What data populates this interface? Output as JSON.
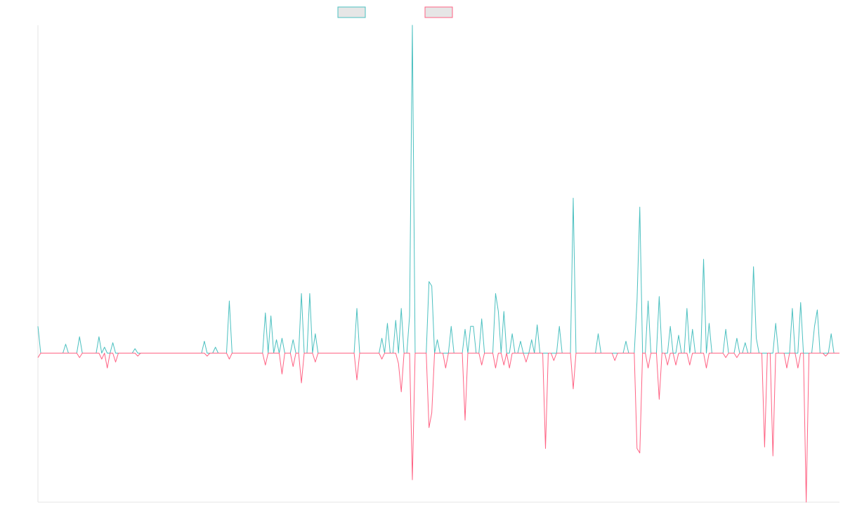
{
  "chart_data": {
    "type": "line",
    "title": "",
    "xlabel": "",
    "ylabel": "",
    "ylim": [
      -1.0,
      2.2
    ],
    "grid": false,
    "legend_position": "top-center",
    "point_count": 290,
    "baseline": 0,
    "series": [
      {
        "color": "#4bc0c0",
        "spikes": [
          [
            0,
            0.18
          ],
          [
            10,
            0.06
          ],
          [
            15,
            0.11
          ],
          [
            22,
            0.11
          ],
          [
            24,
            0.04
          ],
          [
            27,
            0.07
          ],
          [
            35,
            0.03
          ],
          [
            60,
            0.08
          ],
          [
            64,
            0.04
          ],
          [
            69,
            0.35
          ],
          [
            82,
            0.27
          ],
          [
            84,
            0.25
          ],
          [
            86,
            0.09
          ],
          [
            88,
            0.1
          ],
          [
            92,
            0.09
          ],
          [
            95,
            0.4
          ],
          [
            98,
            0.4
          ],
          [
            100,
            0.13
          ],
          [
            115,
            0.3
          ],
          [
            124,
            0.1
          ],
          [
            126,
            0.2
          ],
          [
            129,
            0.22
          ],
          [
            131,
            0.3
          ],
          [
            134,
            0.25
          ],
          [
            135,
            2.2
          ],
          [
            141,
            0.48
          ],
          [
            142,
            0.45
          ],
          [
            144,
            0.09
          ],
          [
            149,
            0.18
          ],
          [
            154,
            0.16
          ],
          [
            156,
            0.18
          ],
          [
            157,
            0.18
          ],
          [
            160,
            0.23
          ],
          [
            165,
            0.4
          ],
          [
            166,
            0.28
          ],
          [
            168,
            0.28
          ],
          [
            171,
            0.13
          ],
          [
            174,
            0.08
          ],
          [
            178,
            0.09
          ],
          [
            180,
            0.19
          ],
          [
            188,
            0.18
          ],
          [
            193,
            1.04
          ],
          [
            202,
            0.13
          ],
          [
            212,
            0.08
          ],
          [
            216,
            0.35
          ],
          [
            217,
            0.98
          ],
          [
            220,
            0.35
          ],
          [
            224,
            0.38
          ],
          [
            228,
            0.18
          ],
          [
            231,
            0.12
          ],
          [
            234,
            0.3
          ],
          [
            236,
            0.16
          ],
          [
            240,
            0.63
          ],
          [
            242,
            0.2
          ],
          [
            248,
            0.16
          ],
          [
            252,
            0.1
          ],
          [
            255,
            0.07
          ],
          [
            258,
            0.58
          ],
          [
            259,
            0.1
          ],
          [
            266,
            0.2
          ],
          [
            272,
            0.3
          ],
          [
            275,
            0.34
          ],
          [
            280,
            0.18
          ],
          [
            281,
            0.29
          ],
          [
            286,
            0.13
          ]
        ]
      },
      {
        "color": "#ff6384",
        "spikes": [
          [
            0,
            -0.03
          ],
          [
            15,
            -0.03
          ],
          [
            23,
            -0.04
          ],
          [
            25,
            -0.1
          ],
          [
            28,
            -0.06
          ],
          [
            36,
            -0.02
          ],
          [
            61,
            -0.02
          ],
          [
            69,
            -0.04
          ],
          [
            82,
            -0.08
          ],
          [
            88,
            -0.14
          ],
          [
            92,
            -0.09
          ],
          [
            95,
            -0.2
          ],
          [
            100,
            -0.06
          ],
          [
            115,
            -0.18
          ],
          [
            124,
            -0.04
          ],
          [
            130,
            -0.07
          ],
          [
            131,
            -0.26
          ],
          [
            135,
            -0.85
          ],
          [
            141,
            -0.5
          ],
          [
            142,
            -0.4
          ],
          [
            147,
            -0.1
          ],
          [
            154,
            -0.45
          ],
          [
            160,
            -0.08
          ],
          [
            165,
            -0.1
          ],
          [
            168,
            -0.08
          ],
          [
            170,
            -0.1
          ],
          [
            176,
            -0.06
          ],
          [
            183,
            -0.64
          ],
          [
            186,
            -0.05
          ],
          [
            193,
            -0.24
          ],
          [
            208,
            -0.05
          ],
          [
            216,
            -0.64
          ],
          [
            217,
            -0.67
          ],
          [
            220,
            -0.1
          ],
          [
            224,
            -0.31
          ],
          [
            227,
            -0.08
          ],
          [
            230,
            -0.08
          ],
          [
            235,
            -0.08
          ],
          [
            241,
            -0.1
          ],
          [
            248,
            -0.03
          ],
          [
            252,
            -0.03
          ],
          [
            262,
            -0.63
          ],
          [
            265,
            -0.69
          ],
          [
            270,
            -0.1
          ],
          [
            274,
            -0.1
          ],
          [
            277,
            -1.0
          ],
          [
            284,
            -0.02
          ]
        ]
      }
    ]
  }
}
